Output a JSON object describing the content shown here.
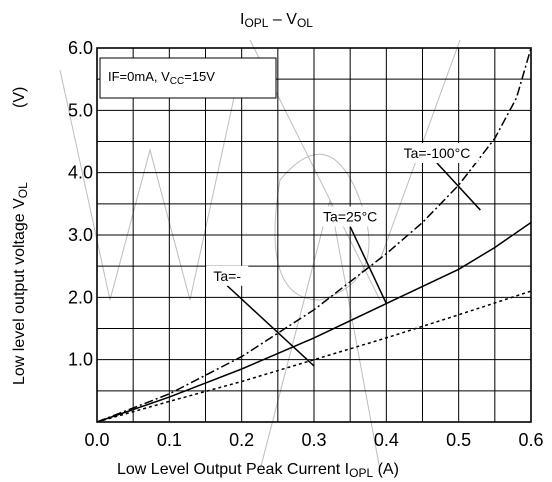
{
  "chart_data": {
    "type": "line",
    "title_main": "I",
    "title_sub": "OPL",
    "title_rest": " – V",
    "title_sub2": "OL",
    "xlabel_main": "Low Level Output Peak Current I",
    "xlabel_sub": "OPL",
    "xlabel_unit": " (A)",
    "ylabel_main": "Low level output voltage   V",
    "ylabel_sub": "OL",
    "ylabel_unit": "(V)",
    "condition_main": "IF=0mA, V",
    "condition_sub": "CC",
    "condition_rest": "=15V",
    "xlim": [
      0,
      0.6
    ],
    "ylim": [
      0,
      6.0
    ],
    "x_ticks": [
      0.0,
      0.1,
      0.2,
      0.3,
      0.4,
      0.5,
      0.6
    ],
    "x_tick_labels": [
      "0.0",
      "0.1",
      "0.2",
      "0.3",
      "0.4",
      "0.5",
      "0.6"
    ],
    "y_ticks": [
      1.0,
      2.0,
      3.0,
      4.0,
      5.0,
      6.0
    ],
    "y_tick_labels": [
      "1.0",
      "2.0",
      "3.0",
      "4.0",
      "5.0",
      "6.0"
    ],
    "x_minor": 0.05,
    "y_minor": 0.5,
    "grid": true,
    "series": [
      {
        "name": "Ta=-100°C",
        "style": "dashdot",
        "x": [
          0,
          0.1,
          0.2,
          0.3,
          0.4,
          0.45,
          0.5,
          0.55,
          0.58,
          0.6
        ],
        "y": [
          0,
          0.45,
          1.05,
          1.8,
          2.7,
          3.2,
          3.8,
          4.55,
          5.2,
          6.0
        ]
      },
      {
        "name": "Ta=25°C",
        "style": "solid",
        "x": [
          0,
          0.1,
          0.2,
          0.3,
          0.4,
          0.5,
          0.55,
          0.6
        ],
        "y": [
          0,
          0.4,
          0.85,
          1.35,
          1.9,
          2.45,
          2.8,
          3.2
        ]
      },
      {
        "name": "Ta=-",
        "style": "dotted",
        "x": [
          0,
          0.1,
          0.2,
          0.3,
          0.4,
          0.5,
          0.6
        ],
        "y": [
          0,
          0.33,
          0.65,
          1.0,
          1.35,
          1.72,
          2.1
        ]
      }
    ],
    "annotations": [
      {
        "text": "Ta=-100°C",
        "label_at": [
          0.47,
          4.22
        ],
        "point_at": [
          0.53,
          3.4
        ]
      },
      {
        "text": "Ta=25°C",
        "label_at": [
          0.35,
          3.2
        ],
        "point_at": [
          0.4,
          1.9
        ]
      },
      {
        "text": "Ta=-",
        "label_at": [
          0.18,
          2.25
        ],
        "point_at": [
          0.3,
          0.9
        ]
      }
    ]
  }
}
